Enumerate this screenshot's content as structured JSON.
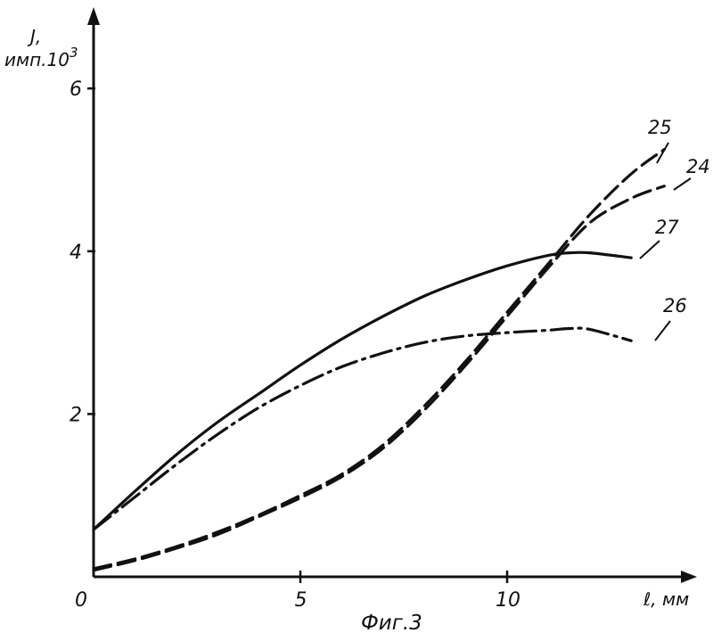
{
  "chart_data": {
    "type": "line",
    "title": "",
    "caption": "Фиг.3",
    "xlabel": "ℓ, мм",
    "ylabel_line1": "J,",
    "ylabel_line2": "имп.10",
    "ylabel_exponent": "3",
    "xlim": [
      0,
      14.5
    ],
    "ylim": [
      0,
      7
    ],
    "x_ticks": [
      {
        "value": 0,
        "label": "0"
      },
      {
        "value": 5,
        "label": "5"
      },
      {
        "value": 10,
        "label": "10"
      }
    ],
    "y_ticks": [
      {
        "value": 2,
        "label": "2"
      },
      {
        "value": 4,
        "label": "4"
      },
      {
        "value": 6,
        "label": "6"
      }
    ],
    "grid": false,
    "series": [
      {
        "name": "27",
        "style": "solid",
        "x": [
          0,
          1,
          2,
          3,
          4,
          5,
          6,
          7,
          8,
          9,
          10,
          11,
          11.5,
          12,
          13
        ],
        "y": [
          0.58,
          1.05,
          1.5,
          1.9,
          2.25,
          2.6,
          2.92,
          3.2,
          3.45,
          3.65,
          3.82,
          3.95,
          3.98,
          3.98,
          3.92
        ]
      },
      {
        "name": "26",
        "style": "dashdot",
        "x": [
          0,
          1,
          2,
          3,
          4,
          5,
          6,
          7,
          8,
          9,
          10,
          11,
          11.5,
          12,
          13
        ],
        "y": [
          0.58,
          0.98,
          1.38,
          1.75,
          2.08,
          2.35,
          2.58,
          2.75,
          2.88,
          2.96,
          3.0,
          3.03,
          3.05,
          3.04,
          2.9
        ]
      },
      {
        "name": "25",
        "style": "dashed",
        "x": [
          0,
          1,
          2,
          3,
          4,
          5,
          6,
          7,
          8,
          9,
          10,
          11,
          12,
          13,
          13.8
        ],
        "y": [
          0.1,
          0.22,
          0.37,
          0.55,
          0.76,
          1.0,
          1.26,
          1.62,
          2.1,
          2.65,
          3.25,
          3.85,
          4.45,
          4.95,
          5.25
        ]
      },
      {
        "name": "24",
        "style": "dashed",
        "x": [
          0,
          1,
          2,
          3,
          4,
          5,
          6,
          7,
          8,
          9,
          10,
          11,
          12,
          13,
          13.8
        ],
        "y": [
          0.08,
          0.2,
          0.35,
          0.52,
          0.74,
          0.97,
          1.23,
          1.58,
          2.05,
          2.6,
          3.2,
          3.8,
          4.35,
          4.65,
          4.8
        ]
      }
    ]
  }
}
